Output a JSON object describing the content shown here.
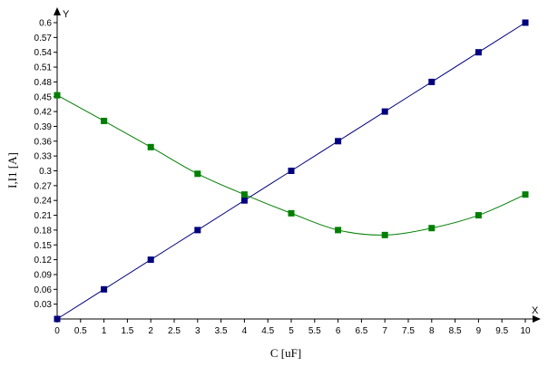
{
  "chart_data": {
    "type": "line",
    "xlabel": "C [uF]",
    "ylabel": "I,I1 [A]",
    "x_axis_letter": "X",
    "y_axis_letter": "Y",
    "xlim": [
      0,
      10
    ],
    "ylim": [
      0,
      0.6
    ],
    "x_ticks": [
      "0",
      "0.5",
      "1",
      "1.5",
      "2",
      "2.5",
      "3",
      "3.5",
      "4",
      "4.5",
      "5",
      "5.5",
      "6",
      "6.5",
      "7",
      "7.5",
      "8",
      "8.5",
      "9",
      "9.5",
      "10"
    ],
    "y_ticks": [
      "0.03",
      "0.06",
      "0.09",
      "0.12",
      "0.15",
      "0.18",
      "0.21",
      "0.24",
      "0.27",
      "0.3",
      "0.33",
      "0.36",
      "0.39",
      "0.42",
      "0.45",
      "0.48",
      "0.51",
      "0.54",
      "0.57",
      "0.6"
    ],
    "grid": false,
    "legend": "none",
    "series": [
      {
        "color": "#00007f",
        "x": [
          0,
          1,
          2,
          3,
          4,
          5,
          6,
          7,
          8,
          9,
          10
        ],
        "values": [
          0.0,
          0.06,
          0.12,
          0.18,
          0.24,
          0.3,
          0.36,
          0.42,
          0.48,
          0.54,
          0.6
        ]
      },
      {
        "color": "#007f00",
        "x": [
          0,
          1,
          2,
          3,
          4,
          5,
          6,
          7,
          8,
          9,
          10
        ],
        "values": [
          0.453,
          0.401,
          0.348,
          0.294,
          0.252,
          0.214,
          0.18,
          0.17,
          0.184,
          0.21,
          0.252
        ]
      }
    ]
  }
}
